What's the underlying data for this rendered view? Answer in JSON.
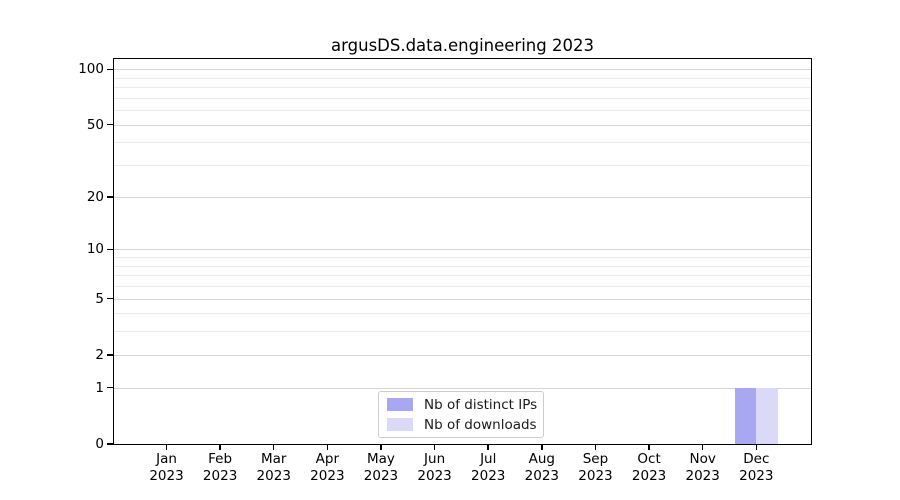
{
  "figure": {
    "title": "argusDS.data.engineering 2023"
  },
  "colors": {
    "background": "#ffffff",
    "axis": "#000000",
    "text": "#000000",
    "grid_major": "#d6d6d6",
    "grid_minor": "#ebebeb",
    "legend_border": "#cccccc",
    "series_distinct_ips": "#a8a8f2",
    "series_downloads": "#dadaf8"
  },
  "chart_data": {
    "type": "bar",
    "title": "argusDS.data.engineering 2023",
    "categories": [
      "Jan 2023",
      "Feb 2023",
      "Mar 2023",
      "Apr 2023",
      "May 2023",
      "Jun 2023",
      "Jul 2023",
      "Aug 2023",
      "Sep 2023",
      "Oct 2023",
      "Nov 2023",
      "Dec 2023"
    ],
    "series": [
      {
        "name": "Nb of distinct IPs",
        "color": "#a8a8f2",
        "values": [
          0,
          0,
          0,
          0,
          0,
          0,
          0,
          0,
          0,
          0,
          0,
          1
        ]
      },
      {
        "name": "Nb of downloads",
        "color": "#dadaf8",
        "values": [
          0,
          0,
          0,
          0,
          0,
          0,
          0,
          0,
          0,
          0,
          0,
          1
        ]
      }
    ],
    "xlabel": "",
    "ylabel": "",
    "yscale": "log1p",
    "ylim": [
      0,
      113
    ],
    "yticks": [
      0,
      1,
      2,
      5,
      10,
      20,
      50,
      100
    ],
    "yticks_minor": [
      3,
      4,
      6,
      7,
      8,
      9,
      30,
      40,
      60,
      70,
      80,
      90
    ],
    "grid": true,
    "legend_position": "lower center"
  }
}
